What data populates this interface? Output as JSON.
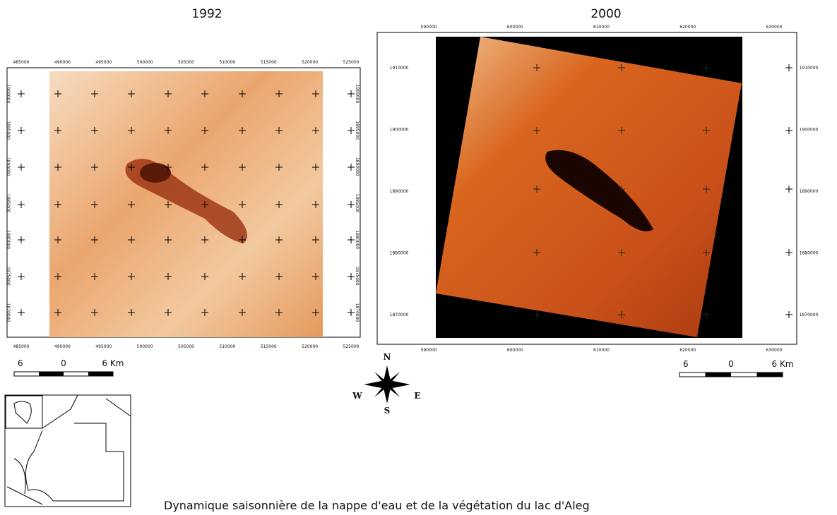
{
  "maps": [
    {
      "title": "1992",
      "top_ticks": [
        "485000",
        "490000",
        "495000",
        "500000",
        "505000",
        "510000",
        "515000",
        "520000",
        "525000"
      ],
      "bottom_ticks": [
        "485000",
        "490000",
        "495000",
        "500000",
        "505000",
        "510000",
        "515000",
        "520000",
        "525000"
      ],
      "left_ticks": [
        "1900000",
        "1895000",
        "1890000",
        "1885000",
        "1880000",
        "1875000",
        "1870000"
      ],
      "right_ticks": [
        "1900000",
        "1895000",
        "1890000",
        "1885000",
        "1880000",
        "1875000",
        "1870000"
      ],
      "scale": [
        "6",
        "0",
        "6 Km"
      ]
    },
    {
      "title": "2000",
      "top_ticks": [
        "590000",
        "600000",
        "610000",
        "620000",
        "630000"
      ],
      "bottom_ticks": [
        "590000",
        "600000",
        "610000",
        "620000",
        "630000"
      ],
      "left_ticks": [
        "1910000",
        "1900000",
        "1890000",
        "1880000",
        "1870000"
      ],
      "right_ticks": [
        "1910000",
        "1900000",
        "1890000",
        "1880000",
        "1870000"
      ],
      "scale": [
        "6",
        "0",
        "6 Km"
      ]
    }
  ],
  "compass": {
    "north": "N",
    "south": "S",
    "west": "W",
    "east": "E"
  },
  "caption": "Dynamique saisonnière de la nappe d'eau et de la végétation du lac d'Aleg"
}
